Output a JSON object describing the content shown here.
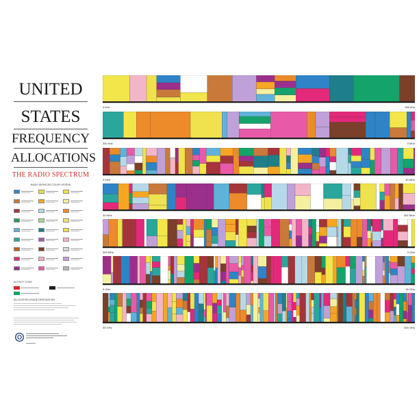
{
  "title": {
    "line1": "UNITED",
    "line2": "STATES",
    "line3": "FREQUENCY",
    "line4": "ALLOCATIONS",
    "subtitle": "THE RADIO SPECTRUM"
  },
  "legend": {
    "heading": "RADIO SERVICES COLOR LEGEND",
    "colors": [
      "#2e84c6",
      "#e8e045",
      "#f2e64a",
      "#c97a3a",
      "#f6a623",
      "#f5f0a0",
      "#a5343b",
      "#b5d9e8",
      "#ed8a2a",
      "#2a9a5e",
      "#a8d88a",
      "#f6e070",
      "#5fb3d8",
      "#1e7f8a",
      "#efe24e",
      "#2aa79d",
      "#9e5fa8",
      "#f3b6c8",
      "#c0601d",
      "#7b3f2a",
      "#d8d8d8",
      "#e3297a",
      "#f7a9c4",
      "#c0a0d8",
      "#9c2f8c",
      "#e85aa8",
      "#b9b9b9"
    ],
    "activity_heading": "ACTIVITY CODE",
    "activity_colors": [
      "#d9272e",
      "#1f1f1f",
      "#13a36b"
    ],
    "designation_heading": "ALLOCATION USAGE DESIGNATION"
  },
  "bands": [
    {
      "start_label": "3 kHz",
      "end_label": "300 kHz",
      "top_margin": true
    },
    {
      "start_label": "300 kHz",
      "end_label": "3 MHz"
    },
    {
      "start_label": "3 MHz",
      "end_label": "30 MHz"
    },
    {
      "start_label": "30 MHz",
      "end_label": "300 MHz"
    },
    {
      "start_label": "300 MHz",
      "end_label": "3 GHz"
    },
    {
      "start_label": "3 GHz",
      "end_label": "30 GHz"
    },
    {
      "start_label": "30 GHz",
      "end_label": "300 GHz"
    }
  ],
  "palette": [
    "#e3297a",
    "#2e84c6",
    "#f2e64a",
    "#c97a3a",
    "#9c2f8c",
    "#2aa79d",
    "#f6a623",
    "#5fb3d8",
    "#13a36b",
    "#e85aa8",
    "#f3b6c8",
    "#efe24e",
    "#1e7f8a",
    "#c0a0d8",
    "#a5343b",
    "#f5f0a0",
    "#7b3f2a",
    "#ed8a2a",
    "#b5d9e8",
    "#ffffff"
  ]
}
